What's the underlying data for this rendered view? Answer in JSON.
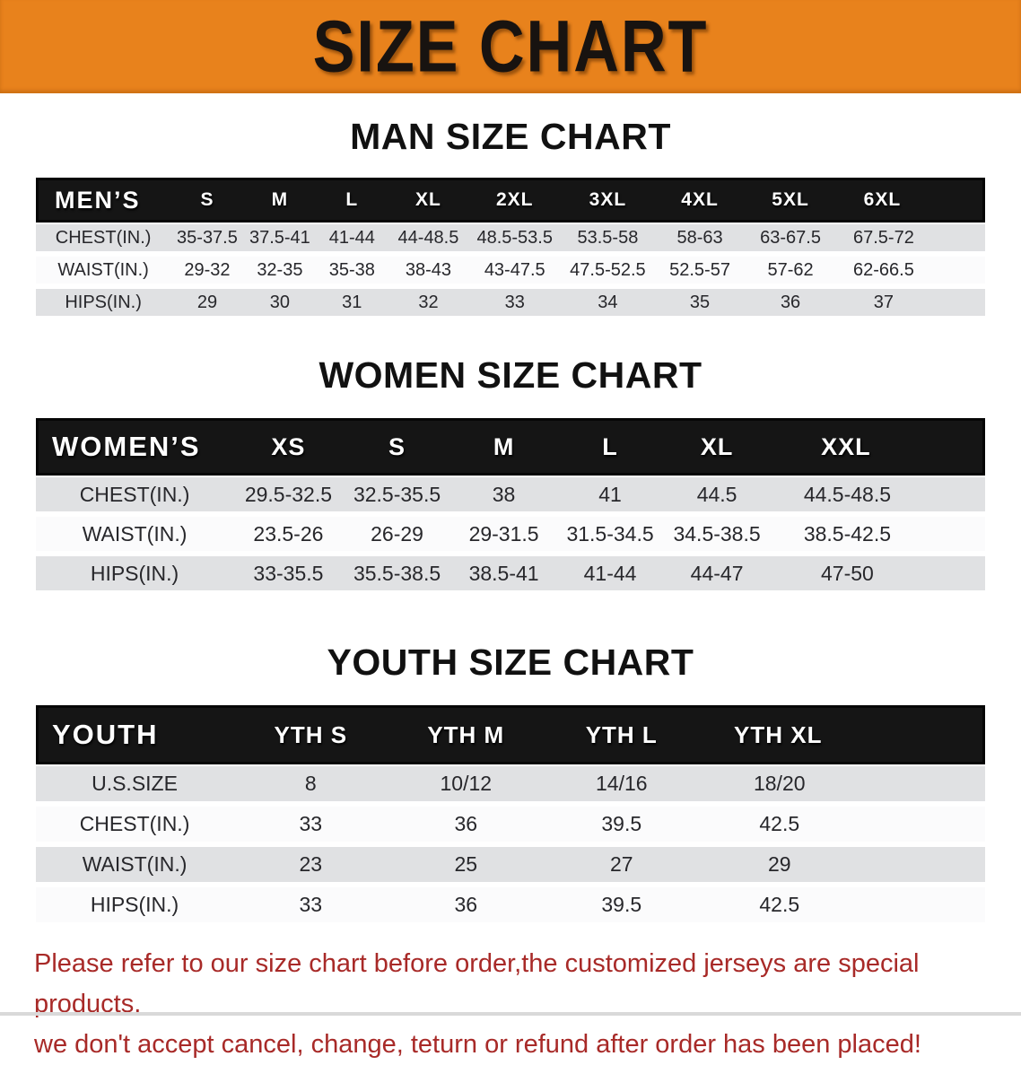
{
  "banner": {
    "title": "SIZE CHART",
    "bg_color": "#e8821c",
    "text_color": "#181310"
  },
  "colors": {
    "table_header_bg": "#151515",
    "row_stripe_gray": "#e0e1e3",
    "row_stripe_white": "#fbfbfc",
    "disclaimer_red": "#a82a28"
  },
  "chart_data": [
    {
      "type": "table",
      "title": "MAN SIZE CHART",
      "header_label": "MEN’S",
      "columns": [
        "S",
        "M",
        "L",
        "XL",
        "2XL",
        "3XL",
        "4XL",
        "5XL",
        "6XL"
      ],
      "rows": [
        {
          "label": "CHEST(IN.)",
          "values": [
            "35-37.5",
            "37.5-41",
            "41-44",
            "44-48.5",
            "48.5-53.5",
            "53.5-58",
            "58-63",
            "63-67.5",
            "67.5-72"
          ]
        },
        {
          "label": "WAIST(IN.)",
          "values": [
            "29-32",
            "32-35",
            "35-38",
            "38-43",
            "43-47.5",
            "47.5-52.5",
            "52.5-57",
            "57-62",
            "62-66.5"
          ]
        },
        {
          "label": "HIPS(IN.)",
          "values": [
            "29",
            "30",
            "31",
            "32",
            "33",
            "34",
            "35",
            "36",
            "37"
          ]
        }
      ]
    },
    {
      "type": "table",
      "title": "WOMEN SIZE CHART",
      "header_label": "WOMEN’S",
      "columns": [
        "XS",
        "S",
        "M",
        "L",
        "XL",
        "XXL"
      ],
      "rows": [
        {
          "label": "CHEST(IN.)",
          "values": [
            "29.5-32.5",
            "32.5-35.5",
            "38",
            "41",
            "44.5",
            "44.5-48.5"
          ]
        },
        {
          "label": "WAIST(IN.)",
          "values": [
            "23.5-26",
            "26-29",
            "29-31.5",
            "31.5-34.5",
            "34.5-38.5",
            "38.5-42.5"
          ]
        },
        {
          "label": "HIPS(IN.)",
          "values": [
            "33-35.5",
            "35.5-38.5",
            "38.5-41",
            "41-44",
            "44-47",
            "47-50"
          ]
        }
      ]
    },
    {
      "type": "table",
      "title": "YOUTH SIZE CHART",
      "header_label": "YOUTH",
      "columns": [
        "YTH S",
        "YTH M",
        "YTH L",
        "YTH XL"
      ],
      "rows": [
        {
          "label": "U.S.SIZE",
          "values": [
            "8",
            "10/12",
            "14/16",
            "18/20"
          ]
        },
        {
          "label": "CHEST(IN.)",
          "values": [
            "33",
            "36",
            "39.5",
            "42.5"
          ]
        },
        {
          "label": "WAIST(IN.)",
          "values": [
            "23",
            "25",
            "27",
            "29"
          ]
        },
        {
          "label": "HIPS(IN.)",
          "values": [
            "33",
            "36",
            "39.5",
            "42.5"
          ]
        }
      ]
    }
  ],
  "disclaimer": {
    "lines": [
      "Please refer to our size chart before order,the customized jerseys are special products,",
      "we don't accept cancel, change, teturn or refund after order has been placed!"
    ]
  }
}
